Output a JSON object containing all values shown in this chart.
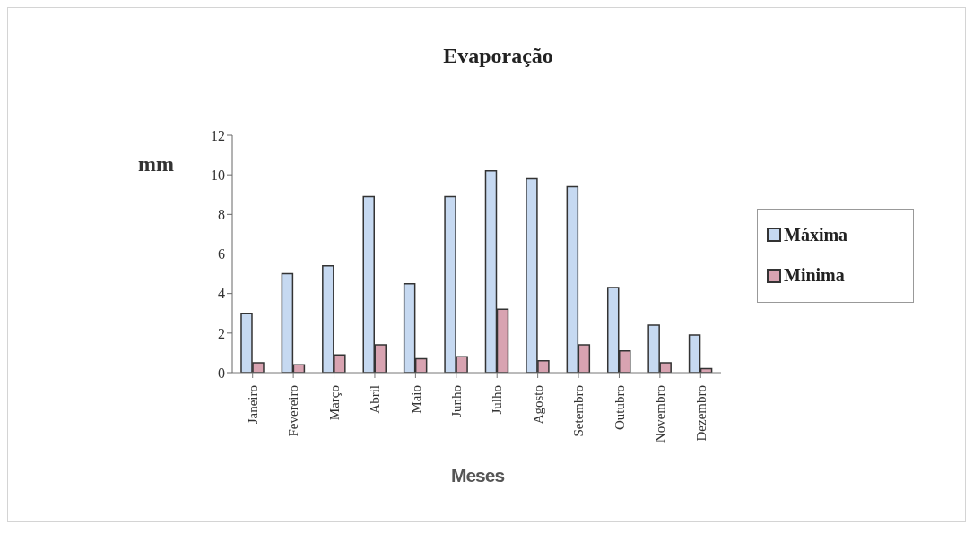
{
  "chart_data": {
    "type": "bar",
    "title": "Evaporação",
    "xlabel": "Meses",
    "ylabel": "mm",
    "categories": [
      "Janeiro",
      "Fevereiro",
      "Março",
      "Abril",
      "Maio",
      "Junho",
      "Julho",
      "Agosto",
      "Setembro",
      "Outubro",
      "Novembro",
      "Dezembro"
    ],
    "series": [
      {
        "name": "Máxima",
        "color": "#c6d9f1",
        "values": [
          3.0,
          5.0,
          5.4,
          8.9,
          4.5,
          8.9,
          10.2,
          9.8,
          9.4,
          4.3,
          2.4,
          1.9
        ]
      },
      {
        "name": "Minima",
        "color": "#d8a3b1",
        "values": [
          0.5,
          0.4,
          0.9,
          1.4,
          0.7,
          0.8,
          3.2,
          0.6,
          1.4,
          1.1,
          0.5,
          0.2
        ]
      }
    ],
    "ylim": [
      0,
      12
    ],
    "yticks": [
      0,
      2,
      4,
      6,
      8,
      10,
      12
    ],
    "legend": "right"
  }
}
